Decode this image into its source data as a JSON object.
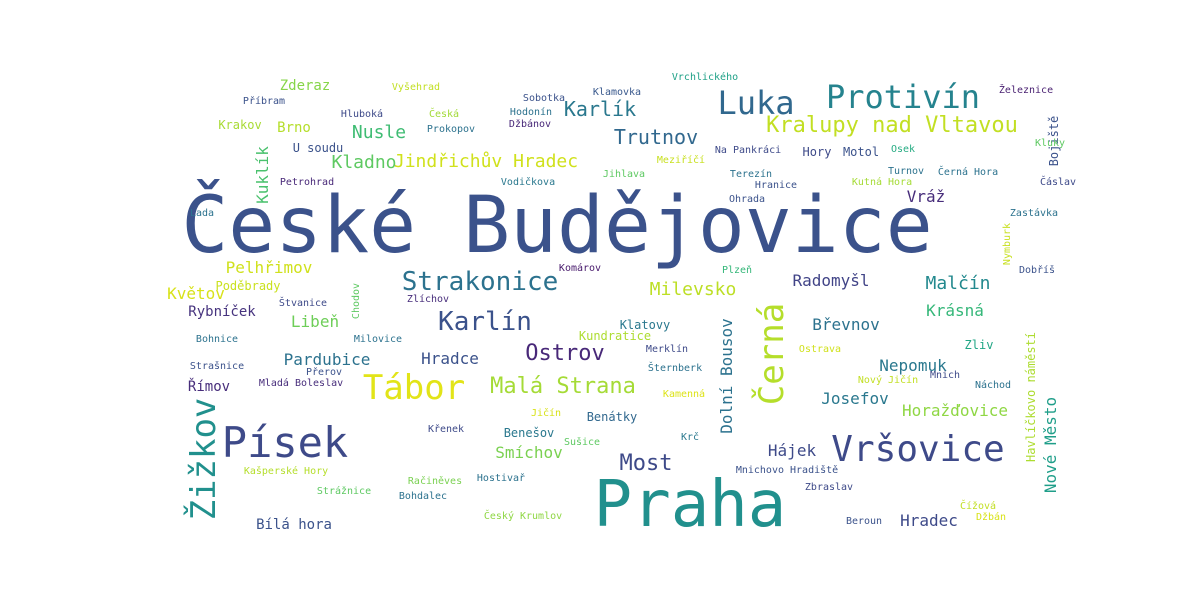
{
  "words": [
    {
      "text": "České Budějovice",
      "color": "#3b528b"
    },
    {
      "text": "Praha",
      "color": "#21908d"
    },
    {
      "text": "Písek",
      "color": "#3e4a89"
    },
    {
      "text": "Vršovice",
      "color": "#3e4a89"
    },
    {
      "text": "Žižkov",
      "color": "#21908d"
    },
    {
      "text": "Černá",
      "color": "#b5de2b"
    },
    {
      "text": "Tábor",
      "color": "#e2e418"
    },
    {
      "text": "Luka",
      "color": "#31688e"
    },
    {
      "text": "Protivín",
      "color": "#25838e"
    },
    {
      "text": "Strakonice",
      "color": "#2c728e"
    },
    {
      "text": "Karlín",
      "color": "#3b528b"
    },
    {
      "text": "Kralupy nad Vltavou",
      "color": "#c2df23"
    },
    {
      "text": "Malá Strana",
      "color": "#a5db36"
    },
    {
      "text": "Ostrov",
      "color": "#482878"
    },
    {
      "text": "Most",
      "color": "#3e4a89"
    },
    {
      "text": "Jindřichův Hradec",
      "color": "#d0e11c"
    },
    {
      "text": "Kladno",
      "color": "#5ec962"
    },
    {
      "text": "Karlík",
      "color": "#2a788e"
    },
    {
      "text": "Trutnov",
      "color": "#31688e"
    },
    {
      "text": "Nusle",
      "color": "#3fbc73"
    },
    {
      "text": "Milevsko",
      "color": "#bddf26"
    },
    {
      "text": "Malčín",
      "color": "#23898e"
    },
    {
      "text": "Radomyšl",
      "color": "#414487"
    },
    {
      "text": "Pelhřimov",
      "color": "#d0e11c"
    },
    {
      "text": "Květov",
      "color": "#d8e219"
    },
    {
      "text": "Kuklík",
      "color": "#4ac16d"
    },
    {
      "text": "Dolní Bousov",
      "color": "#2c728e"
    },
    {
      "text": "Hájek",
      "color": "#3e4a89"
    },
    {
      "text": "Horažďovice",
      "color": "#8fd744"
    },
    {
      "text": "Josefov",
      "color": "#2a788e"
    },
    {
      "text": "Nepomuk",
      "color": "#2a788e"
    },
    {
      "text": "Břevnov",
      "color": "#2c728e"
    },
    {
      "text": "Krásná",
      "color": "#35b779"
    },
    {
      "text": "Pardubice",
      "color": "#2c728e"
    },
    {
      "text": "Hradce",
      "color": "#3b528b"
    },
    {
      "text": "Hradec",
      "color": "#3e4a89"
    },
    {
      "text": "Smíchov",
      "color": "#7ad151"
    },
    {
      "text": "Libeň",
      "color": "#6ece58"
    },
    {
      "text": "Nové Město",
      "color": "#1f9e89"
    },
    {
      "text": "Havlíčkovo náměstí",
      "color": "#addc30"
    },
    {
      "text": "Vráž",
      "color": "#472d7b"
    },
    {
      "text": "Rybníček",
      "color": "#46337e"
    },
    {
      "text": "Římov",
      "color": "#472d7b"
    },
    {
      "text": "Bílá hora",
      "color": "#3b528b"
    },
    {
      "text": "Zderaz",
      "color": "#86d549"
    },
    {
      "text": "Brno",
      "color": "#b5de2b"
    },
    {
      "text": "Krakov",
      "color": "#a8db34"
    },
    {
      "text": "U soudu",
      "color": "#3b528b"
    },
    {
      "text": "Benešov",
      "color": "#2a788e"
    },
    {
      "text": "Benátky",
      "color": "#31688e"
    },
    {
      "text": "Kundratice",
      "color": "#addc30"
    },
    {
      "text": "Klatovy",
      "color": "#2a788e"
    },
    {
      "text": "Zliv",
      "color": "#21a685"
    },
    {
      "text": "Poděbrady",
      "color": "#cae11f"
    },
    {
      "text": "Bojiště",
      "color": "#3b528b"
    },
    {
      "text": "Hory",
      "color": "#3e4a89"
    },
    {
      "text": "Motol",
      "color": "#3b528b"
    },
    {
      "text": "Vyšehrad",
      "color": "#c2df23"
    },
    {
      "text": "Příbram",
      "color": "#3b528b"
    },
    {
      "text": "Hluboká",
      "color": "#3e4a89"
    },
    {
      "text": "Česká",
      "color": "#a2da37"
    },
    {
      "text": "Prokopov",
      "color": "#2c728e"
    },
    {
      "text": "Sobotka",
      "color": "#3b528b"
    },
    {
      "text": "Hodonín",
      "color": "#2c728e"
    },
    {
      "text": "Džbánov",
      "color": "#482878"
    },
    {
      "text": "Klamovka",
      "color": "#38588c"
    },
    {
      "text": "Vrchlického",
      "color": "#1fa187"
    },
    {
      "text": "Železnice",
      "color": "#481f70"
    },
    {
      "text": "Kluky",
      "color": "#5ec962"
    },
    {
      "text": "Osek",
      "color": "#25ab82"
    },
    {
      "text": "Na Pankráci",
      "color": "#3e4a89"
    },
    {
      "text": "Meziříčí",
      "color": "#c8e020"
    },
    {
      "text": "Jihlava",
      "color": "#5ec962"
    },
    {
      "text": "Terezín",
      "color": "#2c728e"
    },
    {
      "text": "Hranice",
      "color": "#3b528b"
    },
    {
      "text": "Kutná Hora",
      "color": "#a5db36"
    },
    {
      "text": "Černá Hora",
      "color": "#2c728e"
    },
    {
      "text": "Turnov",
      "color": "#2c728e"
    },
    {
      "text": "Čáslav",
      "color": "#3e4a89"
    },
    {
      "text": "Petrohrad",
      "color": "#482878"
    },
    {
      "text": "Vodičkova",
      "color": "#2a788e"
    },
    {
      "text": "Ohrada",
      "color": "#3b528b"
    },
    {
      "text": "Lada",
      "color": "#2c728e"
    },
    {
      "text": "Zastávka",
      "color": "#2c728e"
    },
    {
      "text": "Nymburk",
      "color": "#c8e020"
    },
    {
      "text": "Dobříš",
      "color": "#3b528b"
    },
    {
      "text": "Komárov",
      "color": "#481a6c"
    },
    {
      "text": "Plzeň",
      "color": "#35b779"
    },
    {
      "text": "Štvanice",
      "color": "#3e4a89"
    },
    {
      "text": "Zlíchov",
      "color": "#472d7b"
    },
    {
      "text": "Chodov",
      "color": "#5ec962"
    },
    {
      "text": "Milovice",
      "color": "#2c728e"
    },
    {
      "text": "Bohnice",
      "color": "#2c728e"
    },
    {
      "text": "Strašnice",
      "color": "#3b528b"
    },
    {
      "text": "Přerov",
      "color": "#3b528b"
    },
    {
      "text": "Mladá Boleslav",
      "color": "#472d7b"
    },
    {
      "text": "Merklín",
      "color": "#3e4a89"
    },
    {
      "text": "Šternberk",
      "color": "#2c728e"
    },
    {
      "text": "Kamenná",
      "color": "#dde318"
    },
    {
      "text": "Ostrava",
      "color": "#d0e11c"
    },
    {
      "text": "Nový Jičín",
      "color": "#c2df23"
    },
    {
      "text": "Mnich",
      "color": "#3e4a89"
    },
    {
      "text": "Náchod",
      "color": "#2c728e"
    },
    {
      "text": "Jičín",
      "color": "#d8e219"
    },
    {
      "text": "Sušice",
      "color": "#5ec962"
    },
    {
      "text": "Křenek",
      "color": "#3e4a89"
    },
    {
      "text": "Krč",
      "color": "#2a788e"
    },
    {
      "text": "Kašperské Hory",
      "color": "#b5de2b"
    },
    {
      "text": "Račiněves",
      "color": "#7ad151"
    },
    {
      "text": "Hostivař",
      "color": "#2c728e"
    },
    {
      "text": "Mnichovo Hradiště",
      "color": "#3b528b"
    },
    {
      "text": "Zbraslav",
      "color": "#3e4a89"
    },
    {
      "text": "Strážnice",
      "color": "#5ec962"
    },
    {
      "text": "Bohdalec",
      "color": "#2c728e"
    },
    {
      "text": "Český Krumlov",
      "color": "#8fd744"
    },
    {
      "text": "Beroun",
      "color": "#3b528b"
    },
    {
      "text": "Čížová",
      "color": "#c2df23"
    },
    {
      "text": "Džbán",
      "color": "#d8e219"
    }
  ]
}
